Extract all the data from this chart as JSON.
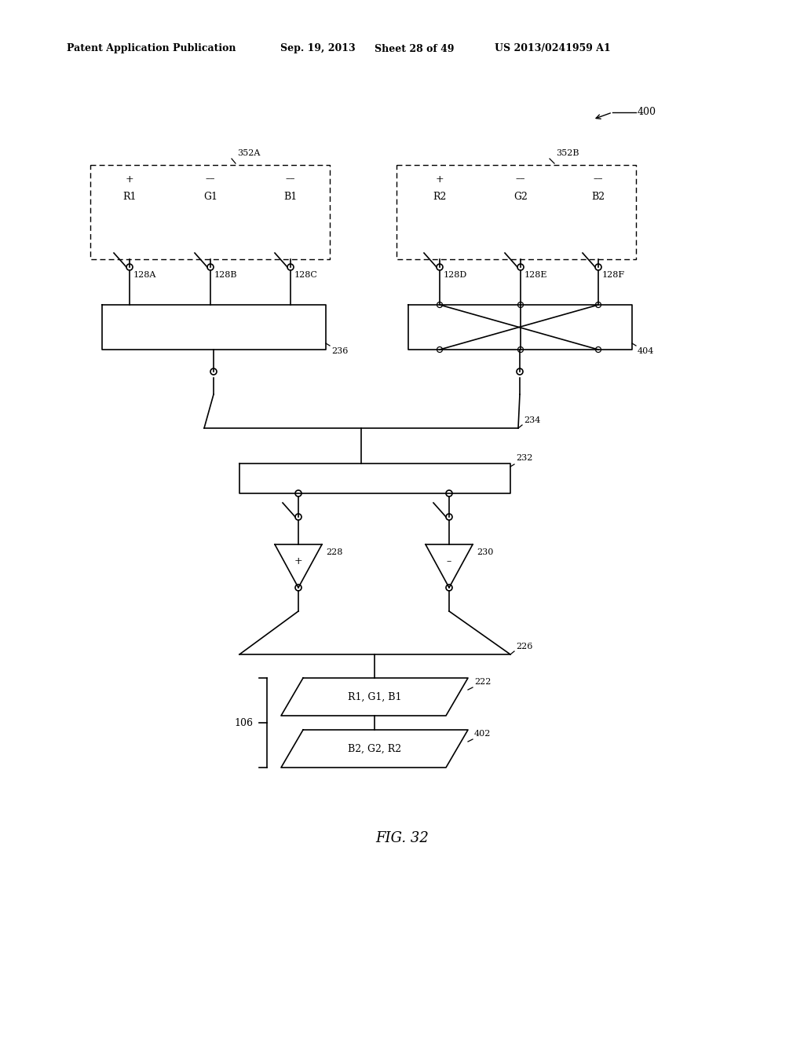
{
  "bg_color": "#ffffff",
  "header_text": "Patent Application Publication",
  "header_date": "Sep. 19, 2013",
  "header_sheet": "Sheet 28 of 49",
  "header_patent": "US 2013/0241959 A1",
  "fig_label": "FIG. 32",
  "label_400": "400",
  "label_352A": "352A",
  "label_352B": "352B",
  "label_128A": "128A",
  "label_128B": "128B",
  "label_128C": "128C",
  "label_128D": "128D",
  "label_128E": "128E",
  "label_128F": "128F",
  "label_236": "236",
  "label_404": "404",
  "label_234": "234",
  "label_232": "232",
  "label_228": "228",
  "label_230": "230",
  "label_226": "226",
  "label_222": "222",
  "label_402": "402",
  "label_106": "106",
  "text_R1G1B1": "R1, G1, B1",
  "text_B2G2R2": "B2, G2, R2"
}
